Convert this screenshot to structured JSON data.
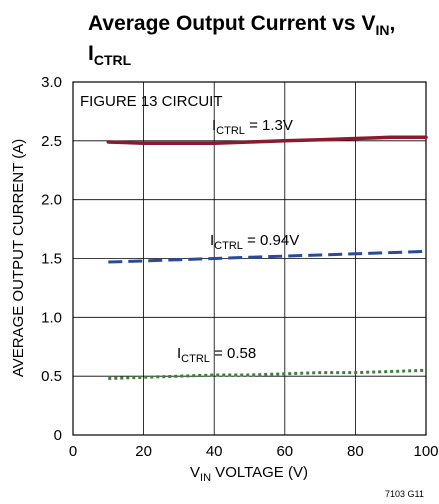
{
  "chart_data": {
    "type": "line",
    "title_main": "Average Output Current vs V",
    "title_main_sub": "IN",
    "title_main_end": ",",
    "title_second": "I",
    "title_second_sub": "CTRL",
    "xlabel_main": "V",
    "xlabel_sub": "IN",
    "xlabel_rest": " VOLTAGE (V)",
    "ylabel": "AVERAGE OUTPUT CURRENT (A)",
    "xlim": [
      0,
      100
    ],
    "ylim": [
      0,
      3.0
    ],
    "x_ticks": [
      "0",
      "20",
      "40",
      "60",
      "80",
      "100"
    ],
    "y_ticks": [
      "0",
      "0.5",
      "1.0",
      "1.5",
      "2.0",
      "2.5",
      "3.0"
    ],
    "grid": true,
    "circuit_label": "FIGURE 13 CIRCUIT",
    "figure_code": "7103 G11",
    "series": [
      {
        "label_main": "I",
        "label_sub": "CTRL",
        "label_rest": " = 1.3V",
        "color": "#8b1a2e",
        "dash": "solid",
        "x": [
          10,
          20,
          30,
          40,
          50,
          60,
          70,
          80,
          90,
          100
        ],
        "y": [
          2.49,
          2.48,
          2.48,
          2.48,
          2.49,
          2.5,
          2.51,
          2.52,
          2.53,
          2.53
        ]
      },
      {
        "label_main": "I",
        "label_sub": "CTRL",
        "label_rest": " = 0.94V",
        "color": "#2b4a9c",
        "dash": "dashed",
        "x": [
          10,
          20,
          30,
          40,
          50,
          60,
          70,
          80,
          90,
          100
        ],
        "y": [
          1.47,
          1.48,
          1.49,
          1.5,
          1.51,
          1.52,
          1.53,
          1.54,
          1.55,
          1.56
        ]
      },
      {
        "label_main": "I",
        "label_sub": "CTRL",
        "label_rest": " = 0.58",
        "color": "#3f7f3f",
        "dash": "dotted",
        "x": [
          10,
          20,
          30,
          40,
          50,
          60,
          70,
          80,
          90,
          100
        ],
        "y": [
          0.48,
          0.49,
          0.5,
          0.51,
          0.51,
          0.52,
          0.53,
          0.53,
          0.54,
          0.55
        ]
      }
    ]
  }
}
